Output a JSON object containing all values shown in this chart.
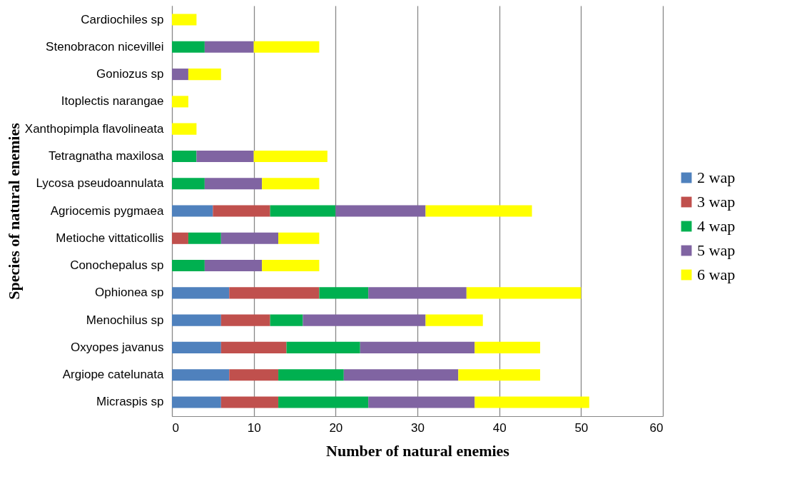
{
  "chart_data": {
    "type": "bar",
    "orientation": "horizontal",
    "stacked": true,
    "xlabel": "Number of natural enemies",
    "ylabel": "Species of natural enemies",
    "categories": [
      "Cardiochiles sp",
      "Stenobracon nicevillei",
      "Goniozus sp",
      "Itoplectis narangae",
      "Xanthopimpla flavolineata",
      "Tetragnatha maxilosa",
      "Lycosa pseudoannulata",
      "Agriocemis pygmaea",
      "Metioche vittaticollis",
      "Conochepalus sp",
      "Ophionea sp",
      "Menochilus sp",
      "Oxyopes javanus",
      "Argiope catelunata",
      "Micraspis sp"
    ],
    "series": [
      {
        "name": "2 wap",
        "color": "#4f81bd",
        "values": [
          null,
          null,
          null,
          null,
          null,
          null,
          null,
          5,
          null,
          null,
          7,
          6,
          6,
          7,
          6
        ]
      },
      {
        "name": "3 wap",
        "color": "#c0504d",
        "values": [
          null,
          null,
          null,
          null,
          null,
          null,
          null,
          7,
          2,
          null,
          11,
          6,
          8,
          6,
          7
        ]
      },
      {
        "name": "4 wap",
        "color": "#00b050",
        "values": [
          null,
          4,
          null,
          null,
          null,
          3,
          4,
          8,
          4,
          4,
          6,
          4,
          9,
          8,
          11
        ]
      },
      {
        "name": "5 wap",
        "color": "#8064a2",
        "values": [
          null,
          6,
          2,
          null,
          null,
          7,
          7,
          11,
          7,
          7,
          12,
          15,
          14,
          14,
          13
        ]
      },
      {
        "name": "6 wap",
        "color": "#ffff00",
        "values": [
          3,
          8,
          4,
          2,
          3,
          9,
          7,
          13,
          5,
          7,
          14,
          7,
          8,
          10,
          14
        ]
      }
    ],
    "xlim": [
      0,
      60
    ],
    "xticks": [
      0,
      10,
      20,
      30,
      40,
      50,
      60
    ],
    "grid": "x",
    "legend": "right"
  }
}
